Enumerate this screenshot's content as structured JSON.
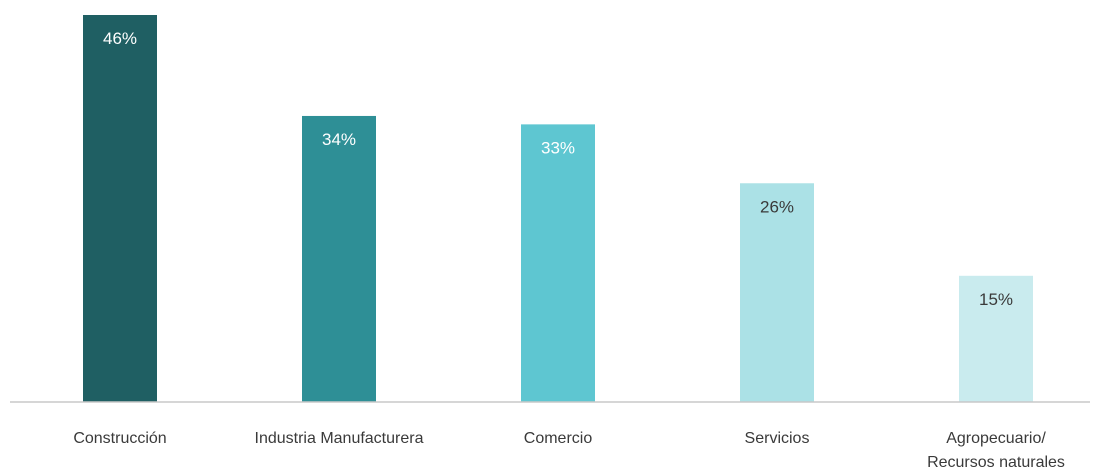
{
  "chart_data": {
    "type": "bar",
    "categories": [
      [
        "Construcción"
      ],
      [
        "Industria Manufacturera"
      ],
      [
        "Comercio"
      ],
      [
        "Servicios"
      ],
      [
        "Agropecuario/",
        "Recursos naturales"
      ]
    ],
    "values": [
      46,
      34,
      33,
      26,
      15
    ],
    "data_labels": [
      "46%",
      "34%",
      "33%",
      "26%",
      "15%"
    ],
    "bar_colors": [
      "#1f5f63",
      "#2e8f96",
      "#5ec6d1",
      "#abe1e6",
      "#c9ebee"
    ],
    "label_colors": [
      "#ffffff",
      "#ffffff",
      "#ffffff",
      "#3a3a3a",
      "#3a3a3a"
    ],
    "axis_color": "#c8c8c8",
    "ylim": [
      0,
      46
    ],
    "title": "",
    "xlabel": "",
    "ylabel": "",
    "grid": false,
    "legend": "none"
  }
}
